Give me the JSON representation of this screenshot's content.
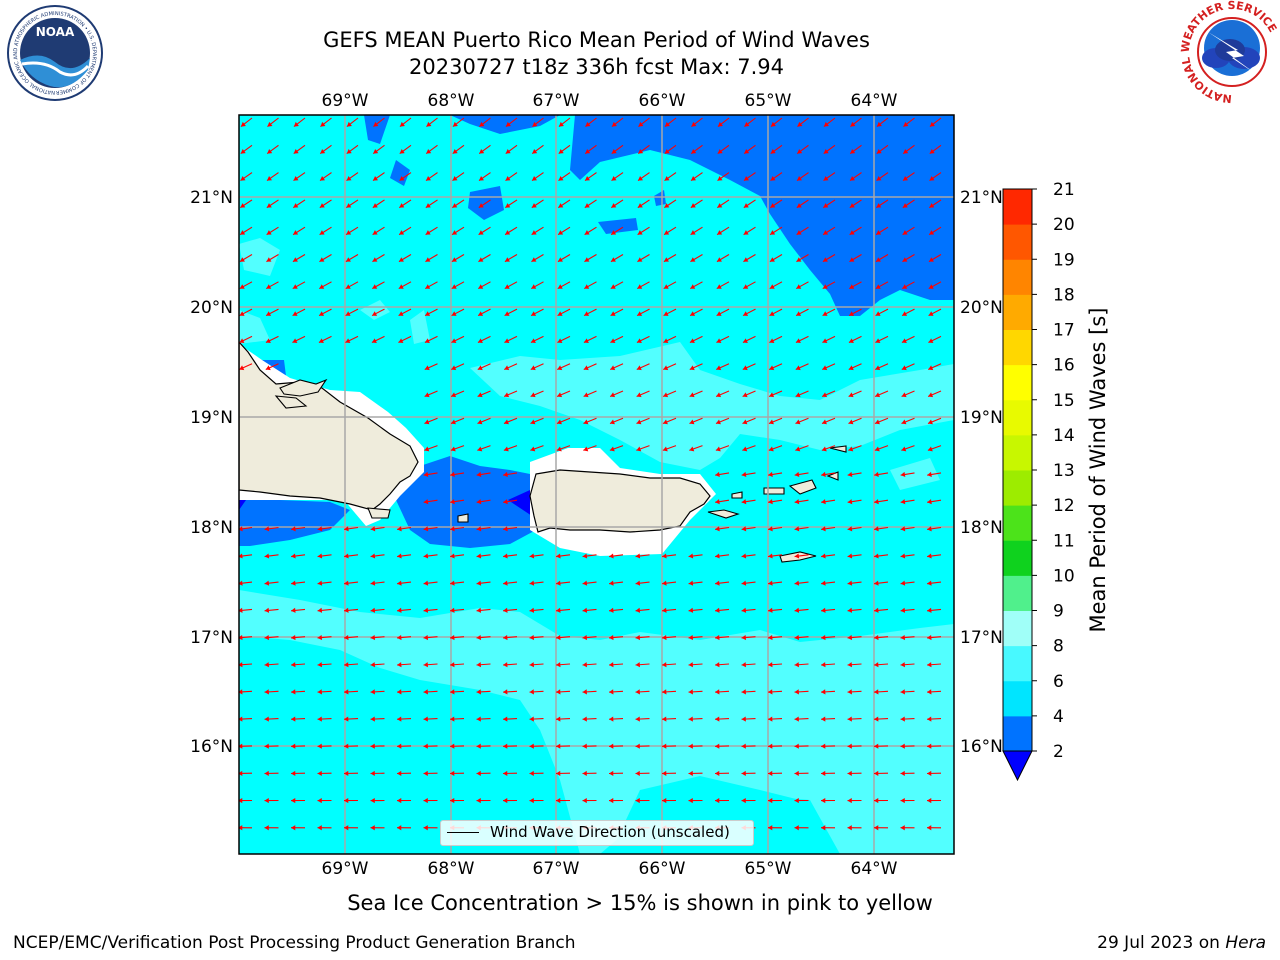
{
  "title": {
    "line1": "GEFS MEAN Puerto Rico Mean Period of Wind Waves",
    "line2": "20230727 t18z 336h fcst   Max: 7.94"
  },
  "map": {
    "lon_labels": [
      "69°W",
      "68°W",
      "67°W",
      "66°W",
      "65°W",
      "64°W"
    ],
    "lat_labels": [
      "21°N",
      "20°N",
      "19°N",
      "18°N",
      "17°N",
      "16°N"
    ],
    "land_color": "#efecdc",
    "vector_color": "#ff0000",
    "legend_label": "Wind Wave Direction (unscaled)"
  },
  "colorbar": {
    "label": "Mean Period of Wind Waves [s]",
    "ticks": [
      "2",
      "4",
      "6",
      "8",
      "9",
      "10",
      "11",
      "12",
      "13",
      "14",
      "15",
      "16",
      "17",
      "18",
      "19",
      "20",
      "21"
    ],
    "colors": [
      "#0073ff",
      "#00e5ff",
      "#48f9ff",
      "#a0fff8",
      "#50f08c",
      "#0fd21e",
      "#4ce31a",
      "#9dec00",
      "#c8f700",
      "#e8fa00",
      "#ffff00",
      "#ffd700",
      "#ffaa00",
      "#ff8500",
      "#ff5700",
      "#ff2800",
      "#ff0000"
    ],
    "under_color": "#0000ff"
  },
  "logos": {
    "left_text": "NOAA",
    "left_ring": "NATIONAL OCEANIC AND ATMOSPHERIC ADMINISTRATION • U.S. DEPARTMENT OF COMMERCE",
    "right_ring": "NATIONAL WEATHER SERVICE"
  },
  "subtitle": "Sea Ice Concentration > 15% is shown in pink to yellow",
  "footer": {
    "left": "NCEP/EMC/Verification Post Processing Product Generation Branch",
    "date": "29 Jul 2023 on",
    "machine": "Hera"
  }
}
